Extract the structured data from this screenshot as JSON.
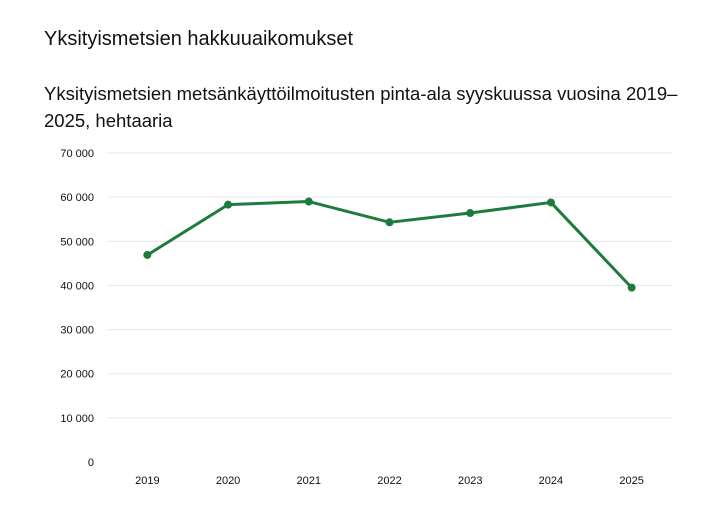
{
  "page_title": "Yksityismetsien hakkuuaikomukset",
  "chart_data": {
    "type": "line",
    "title": "Yksityismetsien metsänkäyttöilmoitusten pinta-ala syyskuussa vuosina 2019–2025, hehtaaria",
    "categories": [
      "2019",
      "2020",
      "2021",
      "2022",
      "2023",
      "2024",
      "2025"
    ],
    "series": [
      {
        "values": [
          46900,
          58300,
          59000,
          54300,
          56400,
          58800,
          39500
        ]
      }
    ],
    "ylim": [
      0,
      70000
    ],
    "yticks": [
      0,
      10000,
      20000,
      30000,
      40000,
      50000,
      60000,
      70000
    ],
    "ytick_labels": [
      "0",
      "10 000",
      "20 000",
      "30 000",
      "40 000",
      "50 000",
      "60 000",
      "70 000"
    ],
    "grid": true,
    "legend": "none",
    "color": "#1e7b3e"
  }
}
